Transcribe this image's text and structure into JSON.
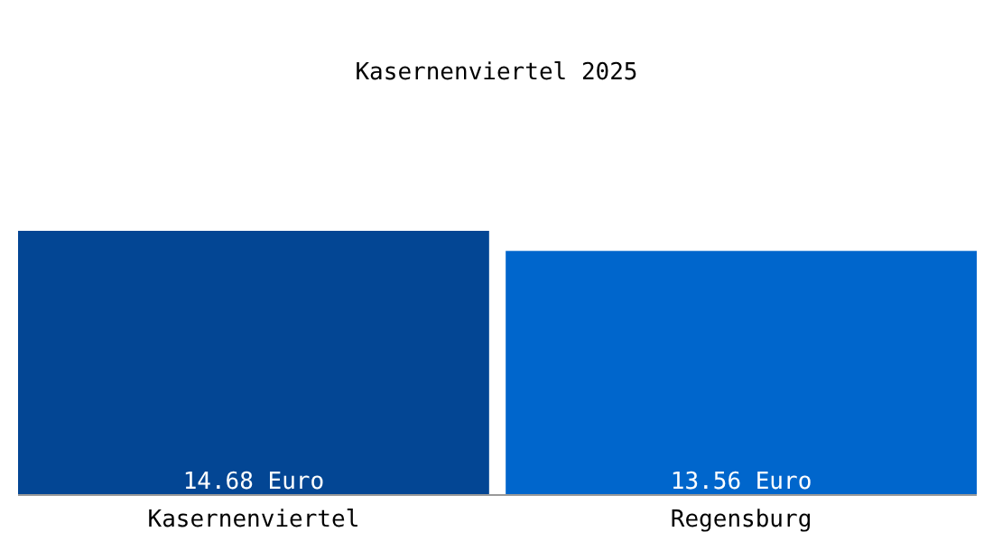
{
  "chart_data": {
    "type": "bar",
    "title": "Kasernenviertel 2025",
    "categories": [
      "Kasernenviertel",
      "Regensburg"
    ],
    "values": [
      14.68,
      13.56
    ],
    "colors": [
      "#034694",
      "#0066cc"
    ],
    "value_labels": [
      "14.68 Euro",
      "13.56 Euro"
    ]
  }
}
